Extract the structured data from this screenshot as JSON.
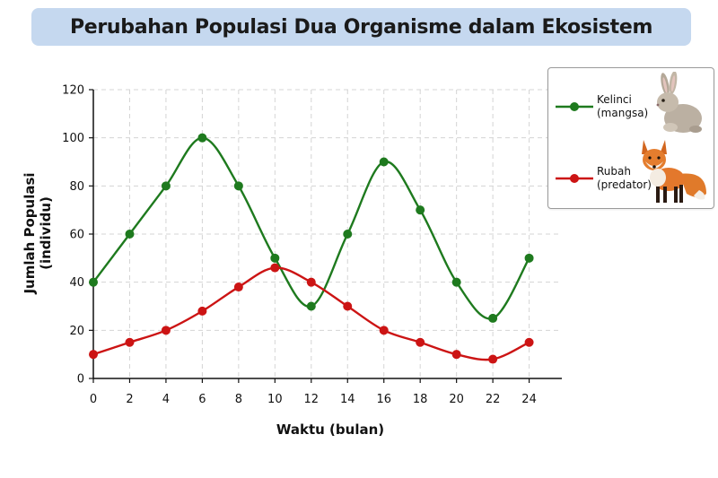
{
  "chart_data": {
    "type": "line",
    "title": "Perubahan Populasi Dua Organisme dalam Ekosistem",
    "xlabel": "Waktu (bulan)",
    "ylabel_line1": "Jumlah Populasi",
    "ylabel_line2": "(individu)",
    "x": [
      0,
      2,
      4,
      6,
      8,
      10,
      12,
      14,
      16,
      18,
      20,
      22,
      24
    ],
    "xlim": [
      0,
      25.8
    ],
    "ylim": [
      0,
      120
    ],
    "xticks": [
      0,
      2,
      4,
      6,
      8,
      10,
      12,
      14,
      16,
      18,
      20,
      22,
      24
    ],
    "yticks": [
      0,
      20,
      40,
      60,
      80,
      100,
      120
    ],
    "grid": true,
    "legend_position": "top-right",
    "series": [
      {
        "name": "Kelinci",
        "subtitle": "(mangsa)",
        "color": "#1e7a1e",
        "icon": "rabbit-icon",
        "values": [
          40,
          60,
          80,
          100,
          80,
          50,
          30,
          60,
          90,
          70,
          40,
          25,
          50
        ]
      },
      {
        "name": "Rubah",
        "subtitle": "(predator)",
        "color": "#cc1414",
        "icon": "fox-icon",
        "values": [
          10,
          15,
          20,
          28,
          38,
          46,
          40,
          30,
          20,
          15,
          10,
          8,
          15
        ]
      }
    ]
  }
}
